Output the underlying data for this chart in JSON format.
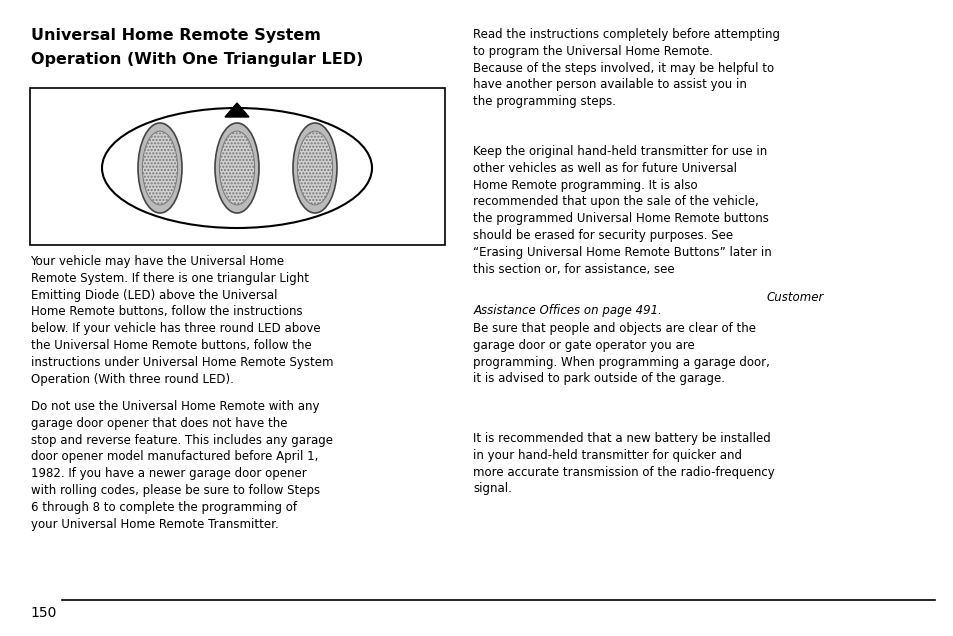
{
  "title_line1": "Universal Home Remote System",
  "title_line2": "Operation (With One Triangular LED)",
  "bg_color": "#ffffff",
  "text_color": "#000000",
  "body_fontsize": 8.5,
  "title_fontsize": 11.5,
  "p_left1": "Your vehicle may have the Universal Home\nRemote System. If there is one triangular Light\nEmitting Diode (LED) above the Universal\nHome Remote buttons, follow the instructions\nbelow. If your vehicle has three round LED above\nthe Universal Home Remote buttons, follow the\ninstructions under Universal Home Remote System\nOperation (With three round LED).",
  "p_left2": "Do not use the Universal Home Remote with any\ngarage door opener that does not have the\nstop and reverse feature. This includes any garage\ndoor opener model manufactured before April 1,\n1982. If you have a newer garage door opener\nwith rolling codes, please be sure to follow Steps\n6 through 8 to complete the programming of\nyour Universal Home Remote Transmitter.",
  "p_right1": "Read the instructions completely before attempting\nto program the Universal Home Remote.\nBecause of the steps involved, it may be helpful to\nhave another person available to assist you in\nthe programming steps.",
  "p_right2a": "Keep the original hand-held transmitter for use in\nother vehicles as well as for future Universal\nHome Remote programming. It is also\nrecommended that upon the sale of the vehicle,\nthe programmed Universal Home Remote buttons\nshould be erased for security purposes. See\n“Erasing Universal Home Remote Buttons” later in\nthis section or, for assistance, see ",
  "p_right2b_italic": "Customer\nAssistance Offices on page 491.",
  "p_right3": "Be sure that people and objects are clear of the\ngarage door or gate operator you are\nprogramming. When programming a garage door,\nit is advised to park outside of the garage.",
  "p_right4": "It is recommended that a new battery be installed\nin your hand-held transmitter for quicker and\nmore accurate transmission of the radio-frequency\nsignal.",
  "page_number": "150"
}
